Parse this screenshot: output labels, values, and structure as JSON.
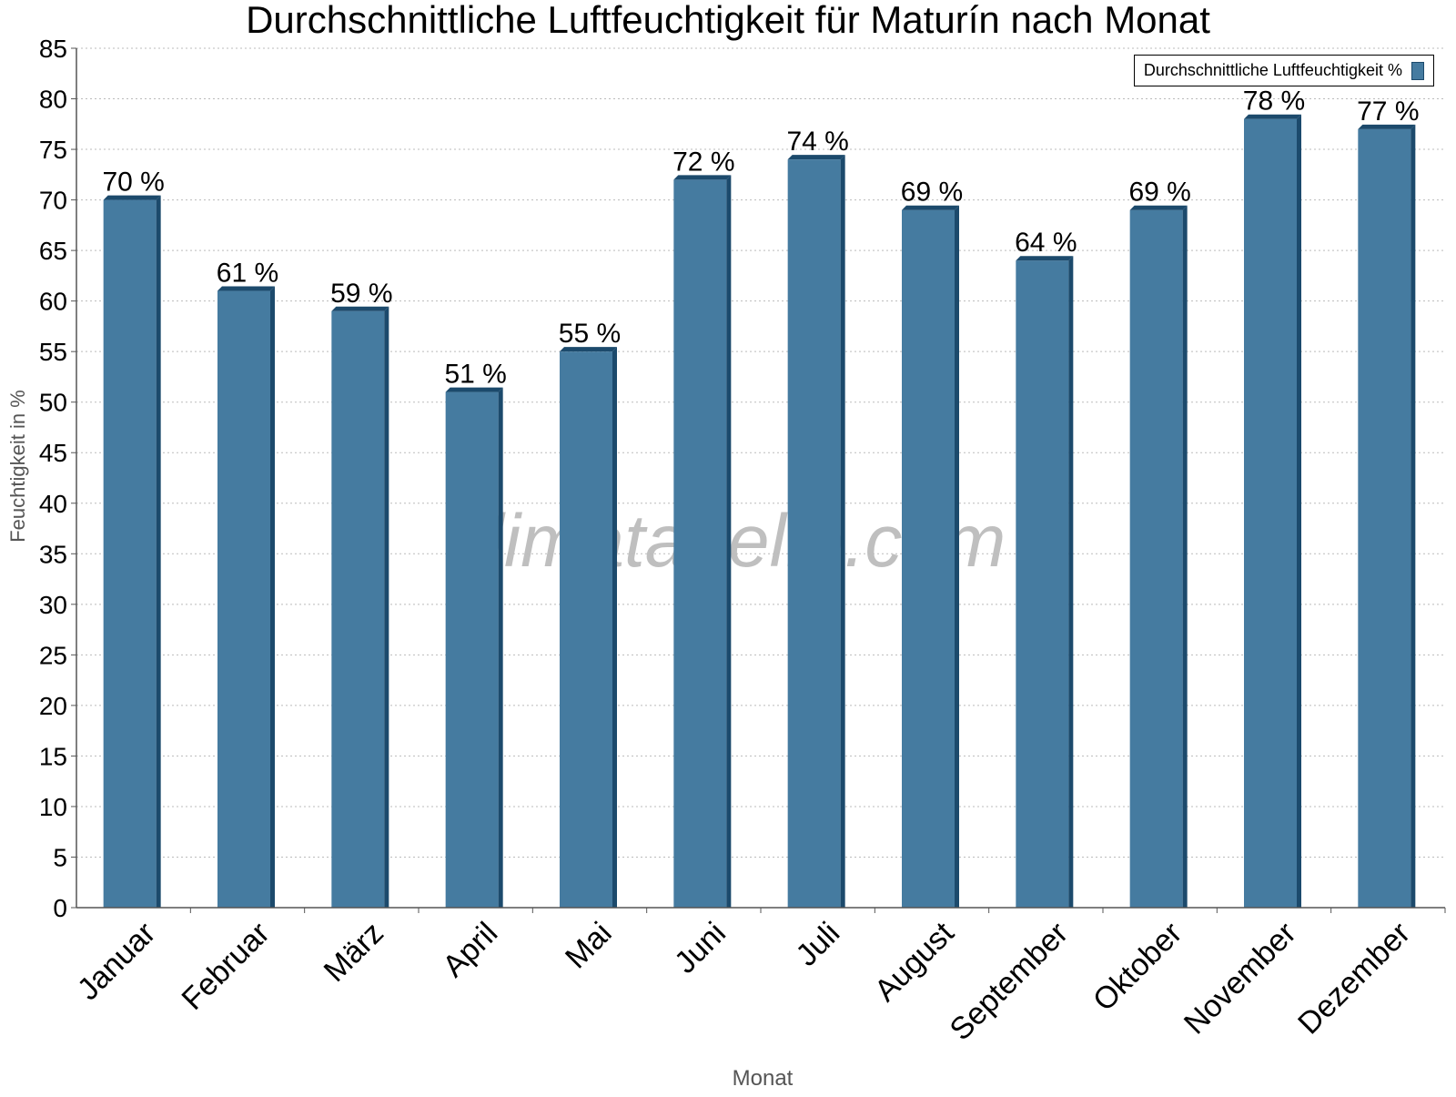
{
  "chart_data": {
    "type": "bar",
    "title": "Durchschnittliche Luftfeuchtigkeit für Maturín nach Monat",
    "xlabel": "Monat",
    "ylabel": "Feuchtigkeit in %",
    "categories": [
      "Januar",
      "Februar",
      "März",
      "April",
      "Mai",
      "Juni",
      "Juli",
      "August",
      "September",
      "Oktober",
      "November",
      "Dezember"
    ],
    "series": [
      {
        "name": "Durchschnittliche Luftfeuchtigkeit %",
        "values": [
          70,
          61,
          59,
          51,
          55,
          72,
          74,
          69,
          64,
          69,
          78,
          77
        ]
      }
    ],
    "data_labels": [
      "70 %",
      "61 %",
      "59 %",
      "51 %",
      "55 %",
      "72 %",
      "74 %",
      "69 %",
      "64 %",
      "69 %",
      "78 %",
      "77 %"
    ],
    "ylim": [
      0,
      85
    ],
    "yticks": [
      0,
      5,
      10,
      15,
      20,
      25,
      30,
      35,
      40,
      45,
      50,
      55,
      60,
      65,
      70,
      75,
      80,
      85
    ],
    "grid": true,
    "legend_position": "top-right",
    "bar_color": "#457ba0",
    "bar_edge_color": "#1c4a6c",
    "watermark": "klimatabelle.com"
  }
}
